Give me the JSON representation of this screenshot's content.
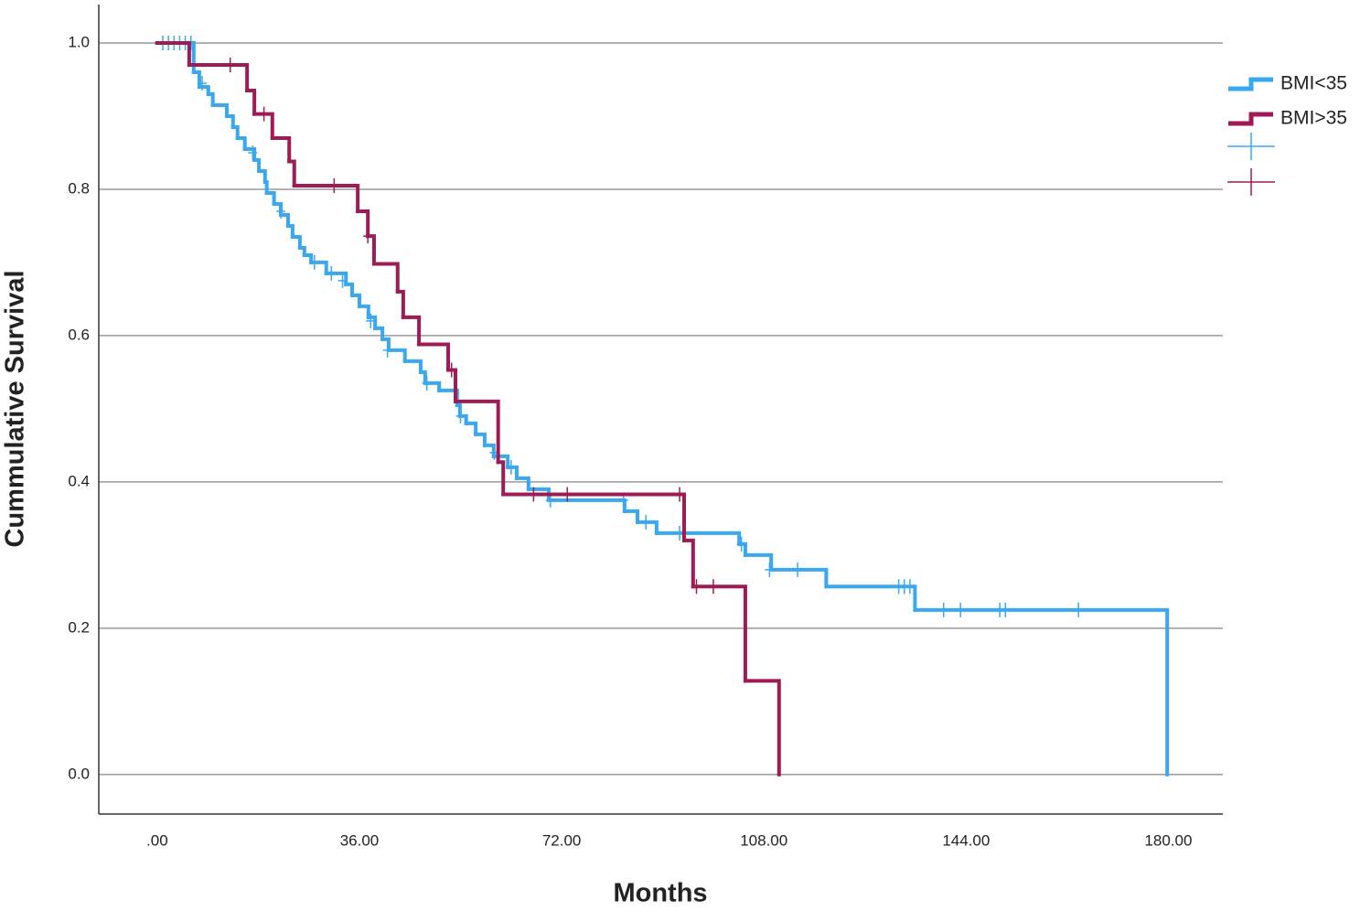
{
  "chart_data": {
    "type": "step",
    "x_label": "Months",
    "y_label": "Cummulative Survival",
    "xlim": [
      -10.4,
      189.7
    ],
    "ylim": [
      -0.054,
      1.0525
    ],
    "xticks": [
      {
        "value": 0,
        "label": ".00"
      },
      {
        "value": 36,
        "label": "36.00"
      },
      {
        "value": 72,
        "label": "72.00"
      },
      {
        "value": 108,
        "label": "108.00"
      },
      {
        "value": 144,
        "label": "144.00"
      },
      {
        "value": 180,
        "label": "180.00"
      }
    ],
    "yticks": [
      {
        "value": 0,
        "label": "0.0"
      },
      {
        "value": 0.2,
        "label": "0.2"
      },
      {
        "value": 0.4,
        "label": "0.4"
      },
      {
        "value": 0.6,
        "label": "0.6"
      },
      {
        "value": 0.8,
        "label": "0.8"
      },
      {
        "value": 1,
        "label": "1.0"
      }
    ],
    "grid": true,
    "legend": "right",
    "series": [
      {
        "name": "BMI<35",
        "color": "#3aa8f0",
        "x": [
          0,
          6.5,
          7.5,
          9.1,
          9.9,
          12.4,
          13.5,
          14.3,
          15.6,
          17.3,
          18.1,
          19.2,
          19.5,
          20.8,
          22.0,
          23.3,
          24.1,
          25.4,
          26.2,
          27.4,
          30.1,
          33.6,
          34.7,
          36.0,
          37.6,
          38.8,
          40.1,
          41.2,
          44.1,
          46.9,
          47.7,
          50.2,
          53.4,
          53.9,
          55.0,
          56.7,
          58.3,
          59.9,
          62.4,
          64.0,
          66.1,
          69.7,
          83.2,
          85.5,
          88.9,
          103.6,
          104.7,
          109.3,
          119.1,
          134.9,
          179.8
        ],
        "values": [
          1.0,
          0.96,
          0.94,
          0.93,
          0.915,
          0.9,
          0.885,
          0.87,
          0.855,
          0.84,
          0.825,
          0.81,
          0.795,
          0.78,
          0.765,
          0.75,
          0.735,
          0.72,
          0.71,
          0.7,
          0.685,
          0.67,
          0.655,
          0.64,
          0.625,
          0.61,
          0.595,
          0.58,
          0.565,
          0.55,
          0.535,
          0.525,
          0.505,
          0.49,
          0.48,
          0.465,
          0.45,
          0.435,
          0.42,
          0.405,
          0.39,
          0.375,
          0.36,
          0.345,
          0.33,
          0.315,
          0.3,
          0.28,
          0.257,
          0.225,
          0
        ],
        "censored_x": [
          1,
          2,
          3,
          4,
          5,
          6,
          8,
          17,
          22,
          28,
          31,
          33,
          38,
          41,
          48,
          54,
          60,
          63,
          70,
          83,
          87,
          93,
          104,
          109,
          114,
          132,
          133,
          134,
          140,
          143,
          150,
          151,
          164
        ],
        "censored_values": [
          1,
          1,
          1,
          1,
          1,
          1,
          0.945,
          0.85,
          0.77,
          0.7,
          0.685,
          0.675,
          0.62,
          0.58,
          0.535,
          0.49,
          0.44,
          0.42,
          0.375,
          0.375,
          0.345,
          0.33,
          0.315,
          0.28,
          0.28,
          0.257,
          0.257,
          0.257,
          0.225,
          0.225,
          0.225,
          0.225,
          0.225
        ]
      },
      {
        "name": "BMI>35",
        "color": "#9e1b56",
        "x": [
          0,
          5.7,
          16.0,
          17.3,
          20.5,
          23.5,
          24.4,
          35.7,
          37.5,
          38.6,
          42.8,
          43.8,
          46.6,
          51.8,
          53.1,
          60.7,
          61.6,
          93.8,
          95.4,
          104.7,
          110.7
        ],
        "values": [
          1.0,
          0.97,
          0.935,
          0.903,
          0.87,
          0.838,
          0.805,
          0.77,
          0.736,
          0.698,
          0.66,
          0.625,
          0.588,
          0.553,
          0.51,
          0.427,
          0.383,
          0.32,
          0.257,
          0.128,
          0
        ],
        "censored_x": [
          13,
          19,
          31.5,
          37.5,
          52.4,
          67,
          73,
          93,
          96,
          99
        ],
        "censored_values": [
          0.97,
          0.903,
          0.805,
          0.736,
          0.553,
          0.383,
          0.383,
          0.383,
          0.257,
          0.257
        ]
      }
    ]
  }
}
